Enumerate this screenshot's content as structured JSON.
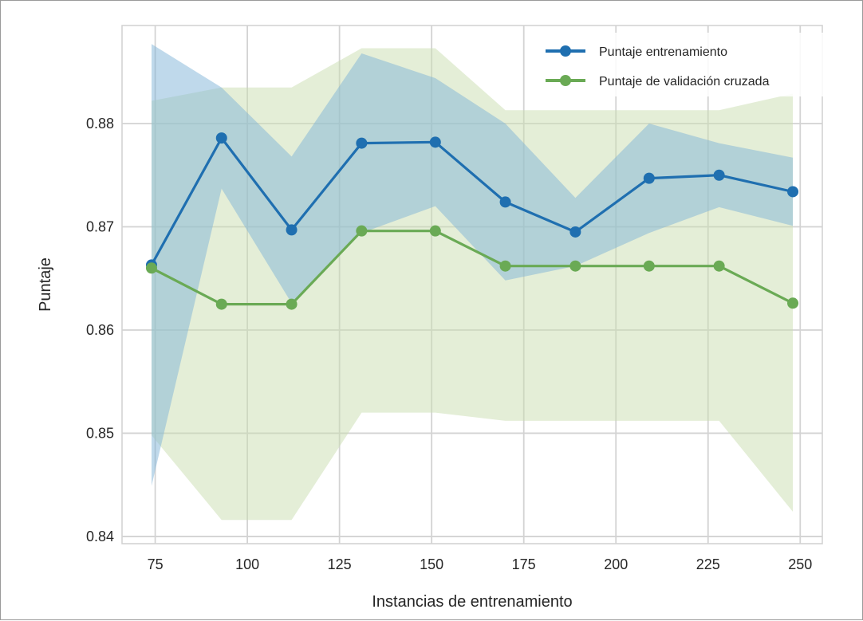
{
  "chart_data": {
    "type": "line",
    "xlabel": "Instancias de entrenamiento",
    "ylabel": "Puntaje",
    "xlim": [
      66,
      256
    ],
    "ylim": [
      0.8393,
      0.8895
    ],
    "xticks": [
      75,
      100,
      125,
      150,
      175,
      200,
      225,
      250
    ],
    "yticks": [
      0.84,
      0.85,
      0.86,
      0.87,
      0.88
    ],
    "ytick_labels": [
      "0.84",
      "0.85",
      "0.86",
      "0.87",
      "0.88"
    ],
    "grid": true,
    "legend_position": "top-right",
    "x": [
      74,
      93,
      112,
      131,
      151,
      170,
      189,
      209,
      228,
      248
    ],
    "series": [
      {
        "name": "Puntaje entrenamiento",
        "color": "#1f6fb0",
        "band_color": "#7fb3d8",
        "values": [
          0.8663,
          0.8786,
          0.8697,
          0.8781,
          0.8782,
          0.8724,
          0.8695,
          0.8747,
          0.875,
          0.8734
        ],
        "upper": [
          0.8877,
          0.8835,
          0.8768,
          0.8868,
          0.8844,
          0.88,
          0.8728,
          0.88,
          0.8781,
          0.8767
        ],
        "lower": [
          0.8449,
          0.8737,
          0.8626,
          0.8694,
          0.872,
          0.8648,
          0.8662,
          0.8694,
          0.8719,
          0.8701
        ]
      },
      {
        "name": "Puntaje de validación cruzada",
        "color": "#6aaa55",
        "band_color": "#c9deb0",
        "values": [
          0.866,
          0.8625,
          0.8625,
          0.8696,
          0.8696,
          0.8662,
          0.8662,
          0.8662,
          0.8662,
          0.8626
        ],
        "upper": [
          0.8822,
          0.8835,
          0.8835,
          0.8873,
          0.8873,
          0.8813,
          0.8813,
          0.8813,
          0.8813,
          0.8829
        ],
        "lower": [
          0.8498,
          0.8416,
          0.8416,
          0.852,
          0.852,
          0.8512,
          0.8512,
          0.8512,
          0.8512,
          0.8424
        ]
      }
    ]
  }
}
